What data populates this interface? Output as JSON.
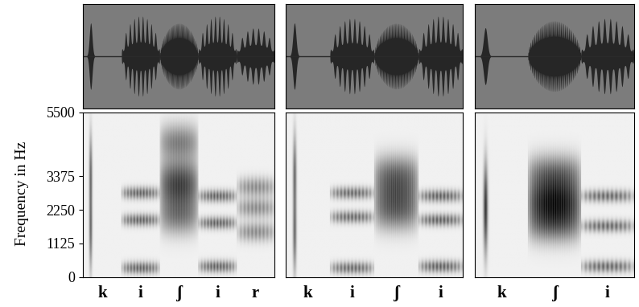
{
  "chart_data": {
    "type": "spectrogram",
    "y_label": "Frequency in Hz",
    "ylim": [
      0,
      5500
    ],
    "yticks": [
      0,
      1125,
      2250,
      3375,
      5500
    ],
    "tick_labels": "y",
    "panels": [
      {
        "segments": [
          {
            "label": "k",
            "kind": "burst",
            "amplitude": 0.7,
            "bands": [
              1500,
              3500
            ]
          },
          {
            "label": "i",
            "kind": "vowel",
            "amplitude": 0.85,
            "bands": [
              300,
              1900,
              2800
            ]
          },
          {
            "label": "ʃ",
            "kind": "fricative",
            "amplitude": 0.7,
            "bands": [
              2000,
              2800,
              3400,
              4500
            ]
          },
          {
            "label": "i",
            "kind": "vowel",
            "amplitude": 0.85,
            "bands": [
              350,
              1800,
              2700
            ]
          },
          {
            "label": "r",
            "kind": "liquid",
            "amplitude": 0.6,
            "bands": [
              1500,
              2300,
              3000
            ]
          }
        ]
      },
      {
        "segments": [
          {
            "label": "k",
            "kind": "burst",
            "amplitude": 0.7,
            "bands": [
              1400,
              3500
            ]
          },
          {
            "label": "i",
            "kind": "vowel",
            "amplitude": 0.8,
            "bands": [
              300,
              2000,
              2800
            ]
          },
          {
            "label": "ʃ",
            "kind": "fricative",
            "amplitude": 0.7,
            "bands": [
              2100,
              2800,
              3500
            ]
          },
          {
            "label": "i",
            "kind": "vowel",
            "amplitude": 0.85,
            "bands": [
              350,
              1900,
              2700
            ]
          }
        ]
      },
      {
        "segments": [
          {
            "label": "k",
            "kind": "burst",
            "amplitude": 0.6,
            "bands": [
              1800,
              2800
            ]
          },
          {
            "label": "ʃ",
            "kind": "fricative",
            "amplitude": 0.75,
            "bands": [
              1700,
              2300,
              2800,
              3500
            ]
          },
          {
            "label": "i",
            "kind": "vowel",
            "amplitude": 0.8,
            "bands": [
              350,
              1700,
              2700
            ]
          }
        ]
      }
    ]
  }
}
